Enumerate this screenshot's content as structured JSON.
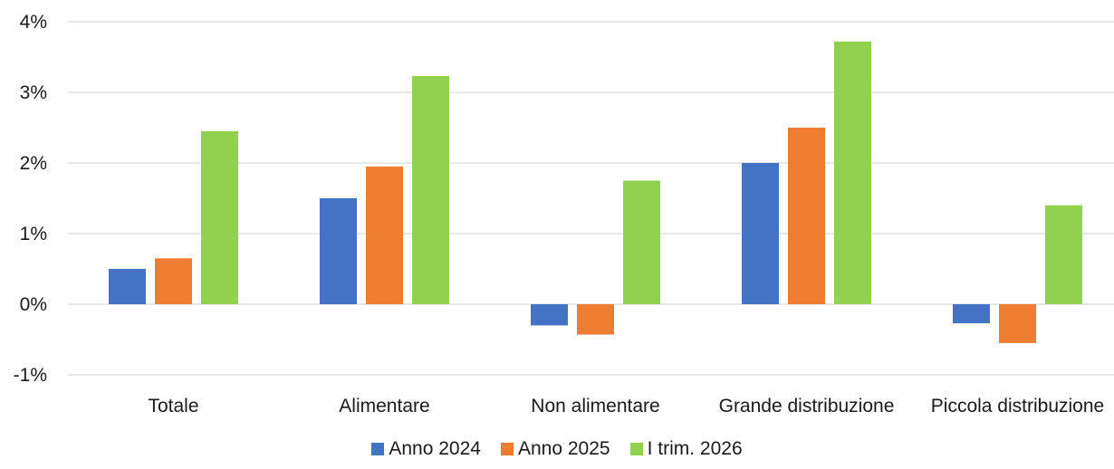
{
  "chart_data": {
    "type": "bar",
    "title": "",
    "xlabel": "",
    "ylabel": "",
    "categories": [
      "Totale",
      "Alimentare",
      "Non alimentare",
      "Grande distribuzione",
      "Piccola distribuzione"
    ],
    "series": [
      {
        "name": "Anno 2024",
        "color": "#4472C4",
        "values": [
          0.5,
          1.5,
          -0.3,
          2.0,
          -0.27
        ]
      },
      {
        "name": "Anno 2025",
        "color": "#ED7D31",
        "values": [
          0.65,
          1.95,
          -0.43,
          2.5,
          -0.55
        ]
      },
      {
        "name": "I trim. 2026",
        "color": "#92D050",
        "values": [
          2.45,
          3.23,
          1.75,
          3.72,
          1.4
        ]
      }
    ],
    "ylim": [
      -1,
      4
    ],
    "yticks": [
      -1,
      0,
      1,
      2,
      3,
      4
    ],
    "ytick_labels": [
      "-1%",
      "0%",
      "1%",
      "2%",
      "3%",
      "4%"
    ],
    "grid": true,
    "legend_position": "bottom"
  }
}
